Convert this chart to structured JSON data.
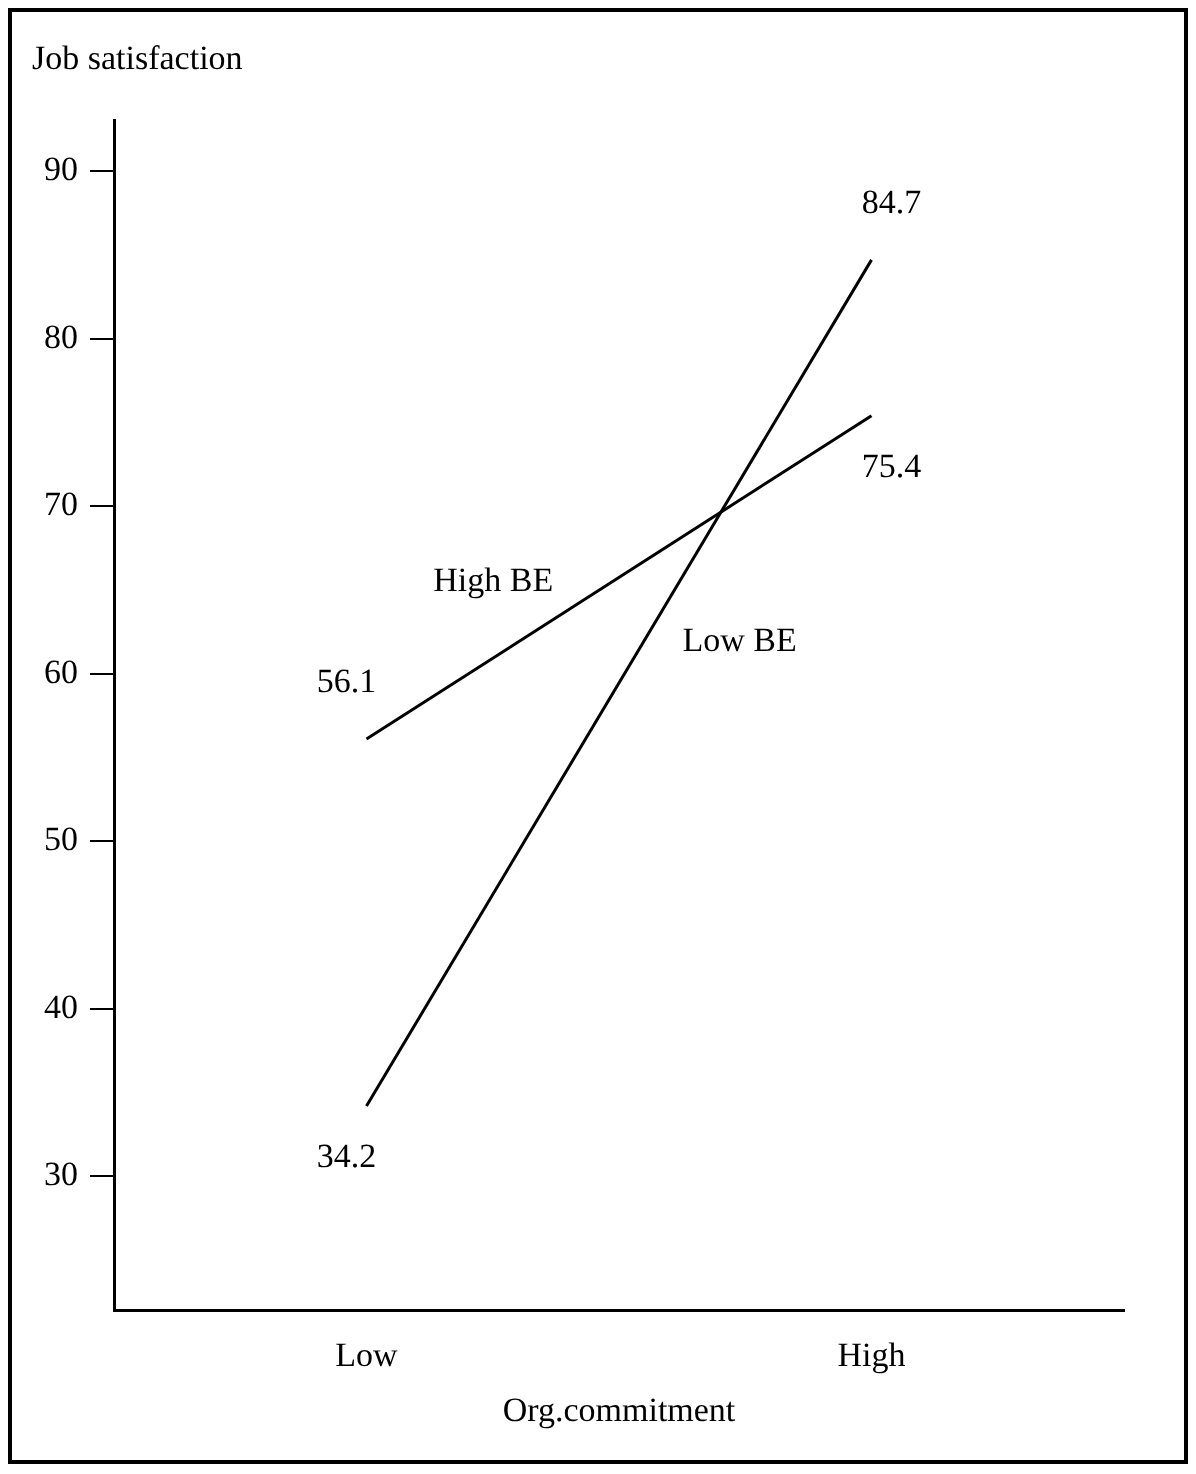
{
  "chart_data": {
    "type": "line",
    "ylabel": "Job satisfaction",
    "xlabel": "Org.commitment",
    "categories": [
      "Low",
      "High"
    ],
    "series": [
      {
        "name": "High BE",
        "color": "#000000",
        "values": [
          56.1,
          75.4
        ]
      },
      {
        "name": "Low BE",
        "color": "#000000",
        "values": [
          34.2,
          84.7
        ]
      }
    ],
    "ylim": [
      22,
      93
    ],
    "yticks": [
      30,
      40,
      50,
      60,
      70,
      80,
      90
    ],
    "grid": false,
    "legend": false,
    "marker": "none",
    "line_style": "solid",
    "data_labels": true
  }
}
